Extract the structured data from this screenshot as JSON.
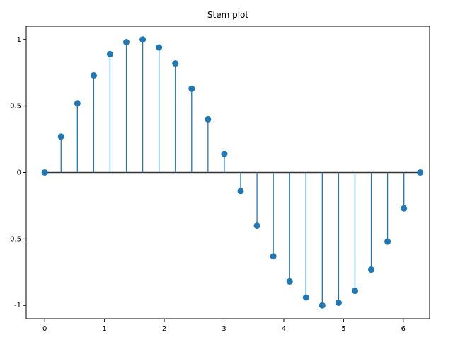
{
  "chart_data": {
    "type": "stem",
    "title": "Stem plot",
    "x": [
      0,
      0.2732,
      0.5464,
      0.8195,
      1.0927,
      1.3659,
      1.6391,
      1.9123,
      2.1855,
      2.4586,
      2.7318,
      3.005,
      3.2782,
      3.5514,
      3.8245,
      4.0977,
      4.3709,
      4.6441,
      4.9173,
      5.1905,
      5.4636,
      5.7368,
      6.01,
      6.2832
    ],
    "values": [
      0,
      0.27,
      0.52,
      0.73,
      0.89,
      0.98,
      1.0,
      0.94,
      0.82,
      0.63,
      0.4,
      0.14,
      -0.14,
      -0.4,
      -0.63,
      -0.82,
      -0.94,
      -1.0,
      -0.98,
      -0.89,
      -0.73,
      -0.52,
      -0.27,
      0
    ],
    "color": "#1f77b4",
    "baseline": 0,
    "xlim": [
      -0.31,
      6.44
    ],
    "xticks": [
      0,
      1,
      2,
      3,
      4,
      5,
      6
    ],
    "ylim": [
      -1.1,
      1.1
    ],
    "yticks": [
      -1,
      -0.5,
      0,
      0.5,
      1
    ]
  }
}
